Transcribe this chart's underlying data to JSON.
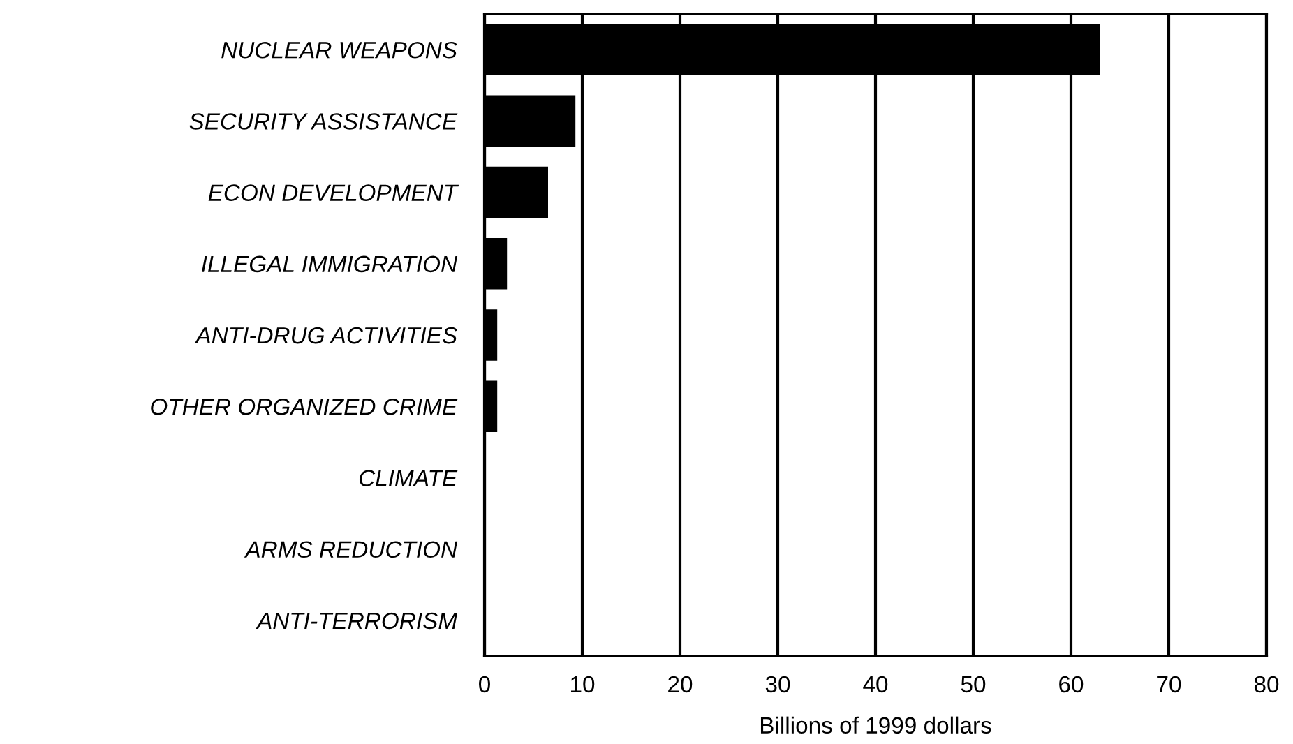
{
  "chart_data": {
    "type": "bar",
    "orientation": "horizontal",
    "xlabel": "Billions of 1999 dollars",
    "categories": [
      "NUCLEAR WEAPONS",
      "SECURITY ASSISTANCE",
      "ECON DEVELOPMENT",
      "ILLEGAL IMMIGRATION",
      "ANTI-DRUG ACTIVITIES",
      "OTHER ORGANIZED CRIME",
      "CLIMATE",
      "ARMS REDUCTION",
      "ANTI-TERRORISM"
    ],
    "values": [
      63,
      9.3,
      6.5,
      2.3,
      1.3,
      1.3,
      0,
      0,
      0
    ],
    "color": "#000000",
    "xlim": [
      0,
      80
    ],
    "xticks": [
      0,
      10,
      20,
      30,
      40,
      50,
      60,
      70,
      80
    ],
    "grid": "x"
  }
}
